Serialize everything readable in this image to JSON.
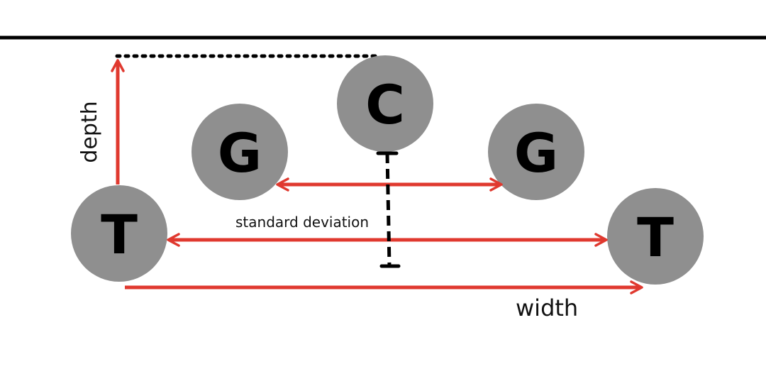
{
  "colors": {
    "node_fill": "#8f8f8f",
    "arrow": "#e0392f",
    "line": "#000000"
  },
  "nodes": {
    "c": {
      "letter": "C"
    },
    "g_left": {
      "letter": "G"
    },
    "g_right": {
      "letter": "G"
    },
    "t_left": {
      "letter": "T"
    },
    "t_right": {
      "letter": "T"
    }
  },
  "labels": {
    "depth": "depth",
    "width": "width",
    "standard_deviation": "standard deviation"
  }
}
